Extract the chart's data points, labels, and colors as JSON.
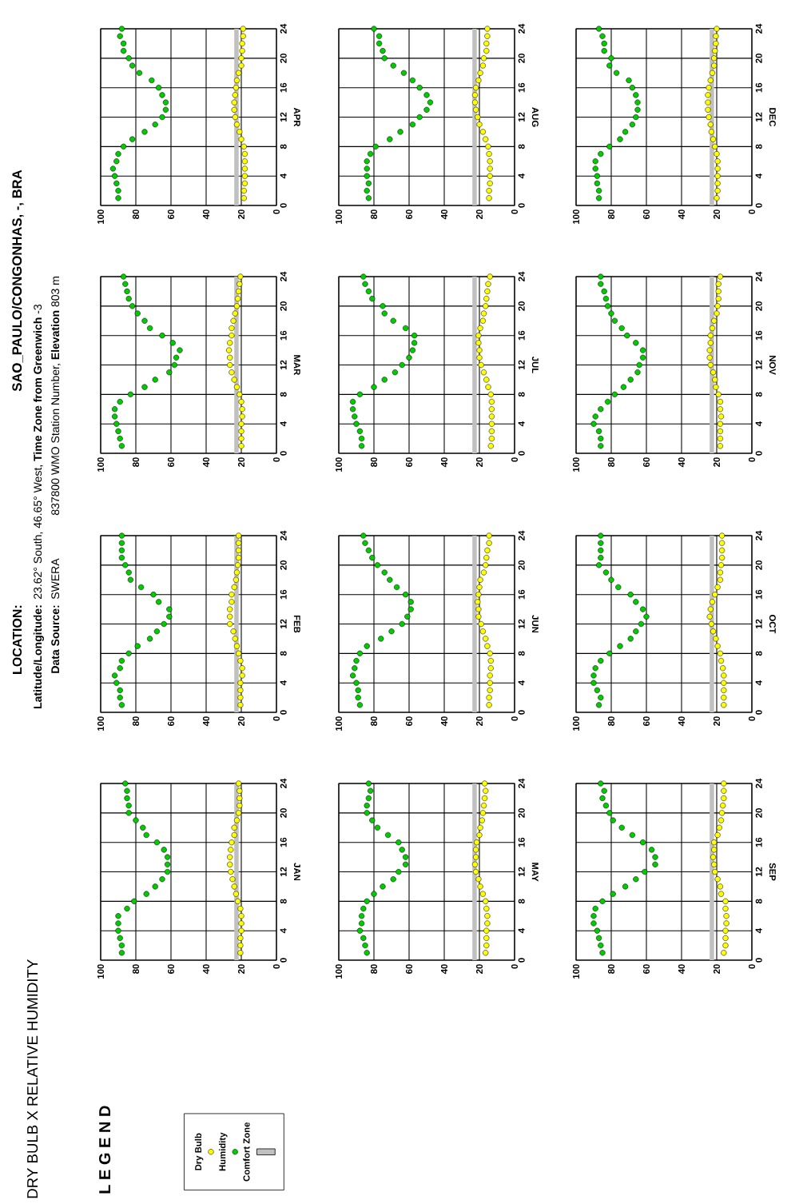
{
  "chart_data": [
    {
      "type": "scatter",
      "title": "DRY BULB X RELATIVE HUMIDITY",
      "legend": "bottom",
      "legend_title": "L E G E N D",
      "annotations": [
        "LOCATION:",
        "SAO_PAULO/CONGONHAS, -, BRA",
        "Latitude/Longitude:",
        "23.62° South, 46.65° West, **Time Zone from Greenwich** -3",
        "Data Source:",
        "SWERA",
        "837800 WMO Station Number, **Elevation** 803 m"
      ],
      "ylabel": "JAN",
      "xlim": [
        100,
        0
      ],
      "xticks": [
        0,
        20,
        40,
        60,
        80,
        100
      ],
      "ylim": [
        0,
        24
      ],
      "yticks": [
        0,
        4,
        8,
        12,
        16,
        20,
        24
      ],
      "grid": true,
      "marker": "circle",
      "bands": [
        {
          "axis": "x",
          "from": 21.5,
          "to": 24,
          "label": "Comfort Zone",
          "color": "#c0c0c0"
        }
      ],
      "series": [
        {
          "name": "Dry Bulb",
          "color": "#ffff00",
          "x": [
            20.5,
            20.5,
            20.5,
            20,
            20,
            20,
            20.5,
            22,
            23,
            24,
            25,
            26,
            26.5,
            26.5,
            26,
            25.5,
            24,
            24,
            22.5,
            21.5,
            21,
            21,
            21,
            21.5
          ],
          "values": [
            1,
            2,
            3,
            4,
            5,
            6,
            7,
            8,
            9,
            10,
            11,
            12,
            13,
            14,
            15,
            16,
            17,
            18,
            19,
            20,
            21,
            22,
            23,
            24
          ]
        },
        {
          "name": "Humidity",
          "color": "#00cc00",
          "x": [
            88,
            88,
            89,
            90,
            90,
            90,
            85,
            81,
            74,
            69,
            65,
            62,
            62,
            62,
            64,
            68,
            74,
            76,
            80,
            84,
            84,
            85,
            85,
            86
          ],
          "values": [
            1,
            2,
            3,
            4,
            5,
            6,
            7,
            8,
            9,
            10,
            11,
            12,
            13,
            14,
            15,
            16,
            17,
            18,
            19,
            20,
            21,
            22,
            23,
            24
          ]
        }
      ]
    },
    {
      "type": "scatter",
      "ylabel": "FEB",
      "xlim": [
        100,
        0
      ],
      "xticks": [
        0,
        20,
        40,
        60,
        80,
        100
      ],
      "ylim": [
        0,
        24
      ],
      "yticks": [
        0,
        4,
        8,
        12,
        16,
        20,
        24
      ],
      "grid": true,
      "marker": "circle",
      "bands": [
        {
          "axis": "x",
          "from": 21.5,
          "to": 24,
          "color": "#c0c0c0"
        }
      ],
      "series": [
        {
          "color": "#ffff00",
          "x": [
            20.5,
            20.5,
            20.5,
            20.5,
            19.5,
            19.5,
            20.5,
            21.5,
            22.5,
            23.5,
            24.5,
            26.5,
            26.5,
            26.5,
            25.5,
            25.5,
            24,
            23,
            22.5,
            22,
            21.5,
            21.5,
            21.5,
            21.5
          ],
          "values": [
            1,
            2,
            3,
            4,
            5,
            6,
            7,
            8,
            9,
            10,
            11,
            12,
            13,
            14,
            15,
            16,
            17,
            18,
            19,
            20,
            21,
            22,
            23,
            24
          ]
        },
        {
          "color": "#00cc00",
          "x": [
            88,
            89,
            89,
            91,
            92,
            89,
            88,
            84,
            79,
            72,
            68,
            64,
            61,
            61,
            67,
            70,
            77,
            83,
            84,
            86,
            88,
            88,
            88,
            88
          ],
          "values": [
            1,
            2,
            3,
            4,
            5,
            6,
            7,
            8,
            9,
            10,
            11,
            12,
            13,
            14,
            15,
            16,
            17,
            18,
            19,
            20,
            21,
            22,
            23,
            24
          ]
        }
      ]
    },
    {
      "type": "scatter",
      "ylabel": "MAR",
      "xlim": [
        100,
        0
      ],
      "xticks": [
        0,
        20,
        40,
        60,
        80,
        100
      ],
      "ylim": [
        0,
        24
      ],
      "yticks": [
        0,
        4,
        8,
        12,
        16,
        20,
        24
      ],
      "grid": true,
      "marker": "circle",
      "bands": [
        {
          "axis": "x",
          "from": 21.5,
          "to": 24,
          "color": "#c0c0c0"
        }
      ],
      "series": [
        {
          "color": "#ffff00",
          "x": [
            20,
            20,
            20,
            20,
            19.5,
            19.5,
            20,
            21,
            22.5,
            24,
            25.5,
            26.5,
            26.5,
            27,
            26.5,
            25.5,
            25.5,
            24.5,
            23.5,
            22.5,
            22,
            21.5,
            21,
            20.5
          ],
          "values": [
            1,
            2,
            3,
            4,
            5,
            6,
            7,
            8,
            9,
            10,
            11,
            12,
            13,
            14,
            15,
            16,
            17,
            18,
            19,
            20,
            21,
            22,
            23,
            24
          ]
        },
        {
          "color": "#00cc00",
          "x": [
            88,
            89,
            90,
            91,
            92,
            92,
            89,
            83,
            75,
            69,
            61,
            58,
            57,
            55,
            59,
            65,
            72,
            75,
            79,
            82,
            84,
            85,
            86,
            87
          ],
          "values": [
            1,
            2,
            3,
            4,
            5,
            6,
            7,
            8,
            9,
            10,
            11,
            12,
            13,
            14,
            15,
            16,
            17,
            18,
            19,
            20,
            21,
            22,
            23,
            24
          ]
        }
      ]
    },
    {
      "type": "scatter",
      "ylabel": "APR",
      "xlim": [
        100,
        0
      ],
      "xticks": [
        0,
        20,
        40,
        60,
        80,
        100
      ],
      "ylim": [
        0,
        24
      ],
      "yticks": [
        0,
        4,
        8,
        12,
        16,
        20,
        24
      ],
      "grid": true,
      "marker": "circle",
      "bands": [
        {
          "axis": "x",
          "from": 21.5,
          "to": 24,
          "color": "#c0c0c0"
        }
      ],
      "series": [
        {
          "color": "#ffff00",
          "x": [
            18.5,
            18.5,
            18,
            18,
            18,
            18,
            18,
            18.5,
            20,
            21,
            22.5,
            23.5,
            24,
            24,
            23.5,
            23,
            22.5,
            21.5,
            20,
            20,
            19.5,
            19.5,
            19,
            19
          ],
          "values": [
            1,
            2,
            3,
            4,
            5,
            6,
            7,
            8,
            9,
            10,
            11,
            12,
            13,
            14,
            15,
            16,
            17,
            18,
            19,
            20,
            21,
            22,
            23,
            24
          ]
        },
        {
          "color": "#00cc00",
          "x": [
            90,
            90,
            91,
            92,
            93,
            91,
            90,
            87,
            82,
            75,
            69,
            65,
            63,
            63,
            65,
            67,
            71,
            78,
            82,
            84,
            87,
            87,
            89,
            88
          ],
          "values": [
            1,
            2,
            3,
            4,
            5,
            6,
            7,
            8,
            9,
            10,
            11,
            12,
            13,
            14,
            15,
            16,
            17,
            18,
            19,
            20,
            21,
            22,
            23,
            24
          ]
        }
      ]
    },
    {
      "type": "scatter",
      "ylabel": "MAY",
      "xlim": [
        100,
        0
      ],
      "xticks": [
        0,
        20,
        40,
        60,
        80,
        100
      ],
      "ylim": [
        0,
        24
      ],
      "yticks": [
        0,
        4,
        8,
        12,
        16,
        20,
        24
      ],
      "grid": true,
      "marker": "circle",
      "bands": [
        {
          "axis": "x",
          "from": 21.5,
          "to": 24,
          "color": "#c0c0c0"
        }
      ],
      "series": [
        {
          "color": "#ffff00",
          "x": [
            16.5,
            16,
            16,
            16,
            15.5,
            15.5,
            16,
            16.5,
            18,
            19.5,
            20.5,
            22,
            22.5,
            22,
            22,
            21.5,
            20,
            19.5,
            18.5,
            18,
            17.5,
            17,
            16.5,
            17
          ],
          "values": [
            1,
            2,
            3,
            4,
            5,
            6,
            7,
            8,
            9,
            10,
            11,
            12,
            13,
            14,
            15,
            16,
            17,
            18,
            19,
            20,
            21,
            22,
            23,
            24
          ]
        },
        {
          "color": "#00cc00",
          "x": [
            84,
            85,
            86,
            88,
            87,
            87,
            86,
            84,
            80,
            75,
            69,
            66,
            62,
            62,
            64,
            66,
            72,
            78,
            81,
            84,
            84,
            83,
            82,
            83
          ],
          "values": [
            1,
            2,
            3,
            4,
            5,
            6,
            7,
            8,
            9,
            10,
            11,
            12,
            13,
            14,
            15,
            16,
            17,
            18,
            19,
            20,
            21,
            22,
            23,
            24
          ]
        }
      ]
    },
    {
      "type": "scatter",
      "ylabel": "JUN",
      "xlim": [
        100,
        0
      ],
      "xticks": [
        0,
        20,
        40,
        60,
        80,
        100
      ],
      "ylim": [
        0,
        24
      ],
      "yticks": [
        0,
        4,
        8,
        12,
        16,
        20,
        24
      ],
      "grid": true,
      "marker": "circle",
      "bands": [
        {
          "axis": "x",
          "from": 21.5,
          "to": 24,
          "color": "#c0c0c0"
        }
      ],
      "series": [
        {
          "color": "#ffff00",
          "x": [
            14.5,
            14.5,
            14,
            14,
            14,
            13.5,
            13.5,
            14,
            15.5,
            16.5,
            18,
            19,
            20.5,
            20.5,
            21,
            20.5,
            20,
            19.5,
            17.5,
            16.5,
            16,
            15.5,
            14.5,
            14.5
          ],
          "values": [
            1,
            2,
            3,
            4,
            5,
            6,
            7,
            8,
            9,
            10,
            11,
            12,
            13,
            14,
            15,
            16,
            17,
            18,
            19,
            20,
            21,
            22,
            23,
            24
          ]
        },
        {
          "color": "#00cc00",
          "x": [
            88,
            89,
            89,
            90,
            92,
            91,
            90,
            88,
            84,
            76,
            70,
            64,
            61,
            59,
            59,
            62,
            67,
            71,
            74,
            78,
            81,
            83,
            85,
            86
          ],
          "values": [
            1,
            2,
            3,
            4,
            5,
            6,
            7,
            8,
            9,
            10,
            11,
            12,
            13,
            14,
            15,
            16,
            17,
            18,
            19,
            20,
            21,
            22,
            23,
            24
          ]
        }
      ]
    },
    {
      "type": "scatter",
      "ylabel": "JUL",
      "xlim": [
        100,
        0
      ],
      "xticks": [
        0,
        20,
        40,
        60,
        80,
        100
      ],
      "ylim": [
        0,
        24
      ],
      "yticks": [
        0,
        4,
        8,
        12,
        16,
        20,
        24
      ],
      "grid": true,
      "marker": "circle",
      "bands": [
        {
          "axis": "x",
          "from": 21.5,
          "to": 24,
          "color": "#c0c0c0"
        }
      ],
      "series": [
        {
          "color": "#ffff00",
          "x": [
            13.5,
            13,
            13,
            13,
            13,
            13,
            13,
            13.5,
            15,
            16,
            17.5,
            19,
            20,
            20,
            20.5,
            20.5,
            19.5,
            18,
            17.5,
            16.5,
            16,
            15.5,
            15,
            14
          ],
          "values": [
            1,
            2,
            3,
            4,
            5,
            6,
            7,
            8,
            9,
            10,
            11,
            12,
            13,
            14,
            15,
            16,
            17,
            18,
            19,
            20,
            21,
            22,
            23,
            24
          ]
        },
        {
          "color": "#00cc00",
          "x": [
            87,
            87,
            88,
            90,
            91,
            92,
            92,
            88,
            80,
            74,
            68,
            64,
            60,
            58,
            57,
            57,
            62,
            69,
            74,
            75,
            81,
            83,
            85,
            86
          ],
          "values": [
            1,
            2,
            3,
            4,
            5,
            6,
            7,
            8,
            9,
            10,
            11,
            12,
            13,
            14,
            15,
            16,
            17,
            18,
            19,
            20,
            21,
            22,
            23,
            24
          ]
        }
      ]
    },
    {
      "type": "scatter",
      "ylabel": "AUG",
      "xlim": [
        100,
        0
      ],
      "xticks": [
        0,
        20,
        40,
        60,
        80,
        100
      ],
      "ylim": [
        0,
        24
      ],
      "yticks": [
        0,
        4,
        8,
        12,
        16,
        20,
        24
      ],
      "grid": true,
      "marker": "circle",
      "bands": [
        {
          "axis": "x",
          "from": 21.5,
          "to": 24,
          "color": "#c0c0c0"
        }
      ],
      "series": [
        {
          "color": "#ffff00",
          "x": [
            14.5,
            14.5,
            14,
            14,
            14,
            14,
            14.5,
            15,
            16.5,
            18,
            20,
            21,
            22,
            22.5,
            22.5,
            22,
            20.5,
            19.5,
            18,
            17.5,
            16,
            16,
            15.5,
            15.5
          ],
          "values": [
            1,
            2,
            3,
            4,
            5,
            6,
            7,
            8,
            9,
            10,
            11,
            12,
            13,
            14,
            15,
            16,
            17,
            18,
            19,
            20,
            21,
            22,
            23,
            24
          ]
        },
        {
          "color": "#00cc00",
          "x": [
            83,
            84,
            83,
            84,
            84,
            84,
            82,
            79,
            71,
            65,
            58,
            54,
            50,
            48,
            50,
            54,
            58,
            63,
            69,
            74,
            75,
            77,
            77,
            80
          ],
          "values": [
            1,
            2,
            3,
            4,
            5,
            6,
            7,
            8,
            9,
            10,
            11,
            12,
            13,
            14,
            15,
            16,
            17,
            18,
            19,
            20,
            21,
            22,
            23,
            24
          ]
        }
      ]
    },
    {
      "type": "scatter",
      "ylabel": "SEP",
      "xlim": [
        100,
        0
      ],
      "xticks": [
        0,
        20,
        40,
        60,
        80,
        100
      ],
      "ylim": [
        0,
        24
      ],
      "yticks": [
        0,
        4,
        8,
        12,
        16,
        20,
        24
      ],
      "grid": true,
      "marker": "circle",
      "bands": [
        {
          "axis": "x",
          "from": 21.5,
          "to": 24,
          "color": "#c0c0c0"
        }
      ],
      "series": [
        {
          "color": "#ffff00",
          "x": [
            16,
            15,
            15,
            15,
            14.5,
            14.5,
            15,
            15,
            17.5,
            18,
            19.5,
            21,
            21.5,
            22,
            21.5,
            21.5,
            19.5,
            18.5,
            17.5,
            17,
            16.5,
            16,
            16,
            16
          ],
          "values": [
            1,
            2,
            3,
            4,
            5,
            6,
            7,
            8,
            9,
            10,
            11,
            12,
            13,
            14,
            15,
            16,
            17,
            18,
            19,
            20,
            21,
            22,
            23,
            24
          ]
        },
        {
          "color": "#00cc00",
          "x": [
            85,
            86,
            87,
            88,
            90,
            90,
            89,
            85,
            79,
            72,
            66,
            61,
            55,
            55,
            57,
            62,
            68,
            74,
            79,
            81,
            83,
            85,
            84,
            86
          ],
          "values": [
            1,
            2,
            3,
            4,
            5,
            6,
            7,
            8,
            9,
            10,
            11,
            12,
            13,
            14,
            15,
            16,
            17,
            18,
            19,
            20,
            21,
            22,
            23,
            24
          ]
        }
      ]
    },
    {
      "type": "scatter",
      "ylabel": "OCT",
      "xlim": [
        100,
        0
      ],
      "xticks": [
        0,
        20,
        40,
        60,
        80,
        100
      ],
      "ylim": [
        0,
        24
      ],
      "yticks": [
        0,
        4,
        8,
        12,
        16,
        20,
        24
      ],
      "grid": true,
      "marker": "circle",
      "bands": [
        {
          "axis": "x",
          "from": 21.5,
          "to": 24,
          "color": "#c0c0c0"
        }
      ],
      "series": [
        {
          "color": "#ffff00",
          "x": [
            16,
            16,
            16,
            16,
            16,
            16.5,
            17.5,
            18,
            19.5,
            20.5,
            22,
            23,
            24,
            23.5,
            22.5,
            21,
            19.5,
            18,
            18,
            17.5,
            17,
            17,
            17,
            17
          ],
          "values": [
            1,
            2,
            3,
            4,
            5,
            6,
            7,
            8,
            9,
            10,
            11,
            12,
            13,
            14,
            15,
            16,
            17,
            18,
            19,
            20,
            21,
            22,
            23,
            24
          ]
        },
        {
          "color": "#00cc00",
          "x": [
            87,
            86,
            88,
            90,
            90,
            89,
            86,
            81,
            75,
            69,
            66,
            63,
            60,
            62,
            66,
            69,
            76,
            80,
            83,
            87,
            86,
            86,
            86,
            86
          ],
          "values": [
            1,
            2,
            3,
            4,
            5,
            6,
            7,
            8,
            9,
            10,
            11,
            12,
            13,
            14,
            15,
            16,
            17,
            18,
            19,
            20,
            21,
            22,
            23,
            24
          ]
        }
      ]
    },
    {
      "type": "scatter",
      "ylabel": "NOV",
      "xlim": [
        100,
        0
      ],
      "xticks": [
        0,
        20,
        40,
        60,
        80,
        100
      ],
      "ylim": [
        0,
        24
      ],
      "yticks": [
        0,
        4,
        8,
        12,
        16,
        20,
        24
      ],
      "grid": true,
      "marker": "circle",
      "bands": [
        {
          "axis": "x",
          "from": 21.5,
          "to": 24,
          "color": "#c0c0c0"
        }
      ],
      "series": [
        {
          "color": "#ffff00",
          "x": [
            18,
            18,
            18,
            18,
            17.5,
            18,
            18,
            19,
            20.5,
            21,
            22,
            23.5,
            24,
            24,
            23.5,
            23.5,
            22.5,
            21.5,
            20,
            19.5,
            19,
            19,
            19,
            18
          ],
          "values": [
            1,
            2,
            3,
            4,
            5,
            6,
            7,
            8,
            9,
            10,
            11,
            12,
            13,
            14,
            15,
            16,
            17,
            18,
            19,
            20,
            21,
            22,
            23,
            24
          ]
        },
        {
          "color": "#00cc00",
          "x": [
            86,
            86,
            87,
            90,
            89,
            86,
            82,
            78,
            73,
            69,
            65,
            64,
            62,
            62,
            66,
            71,
            74,
            78,
            80,
            82,
            83,
            84,
            86,
            86
          ],
          "values": [
            1,
            2,
            3,
            4,
            5,
            6,
            7,
            8,
            9,
            10,
            11,
            12,
            13,
            14,
            15,
            16,
            17,
            18,
            19,
            20,
            21,
            22,
            23,
            24
          ]
        }
      ]
    },
    {
      "type": "scatter",
      "ylabel": "DEC",
      "xlim": [
        100,
        0
      ],
      "xticks": [
        0,
        20,
        40,
        60,
        80,
        100
      ],
      "ylim": [
        0,
        24
      ],
      "yticks": [
        0,
        4,
        8,
        12,
        16,
        20,
        24
      ],
      "grid": true,
      "marker": "circle",
      "bands": [
        {
          "axis": "x",
          "from": 21.5,
          "to": 24,
          "color": "#c0c0c0"
        }
      ],
      "series": [
        {
          "color": "#ffff00",
          "x": [
            20,
            19.5,
            19.5,
            19.5,
            19.5,
            19.5,
            20,
            21,
            22,
            23,
            23.5,
            24.5,
            25,
            25,
            25,
            24.5,
            23.5,
            22.5,
            21.5,
            21.5,
            21,
            20.5,
            20.5,
            20
          ],
          "values": [
            1,
            2,
            3,
            4,
            5,
            6,
            7,
            8,
            9,
            10,
            11,
            12,
            13,
            14,
            15,
            16,
            17,
            18,
            19,
            20,
            21,
            22,
            23,
            24
          ]
        },
        {
          "color": "#00cc00",
          "x": [
            87,
            87,
            88,
            88,
            89,
            89,
            86,
            81,
            75,
            72,
            68,
            66,
            65,
            65,
            66,
            68,
            70,
            77,
            81,
            80,
            84,
            84,
            85,
            87
          ],
          "values": [
            1,
            2,
            3,
            4,
            5,
            6,
            7,
            8,
            9,
            10,
            11,
            12,
            13,
            14,
            15,
            16,
            17,
            18,
            19,
            20,
            21,
            22,
            23,
            24
          ]
        }
      ]
    }
  ]
}
